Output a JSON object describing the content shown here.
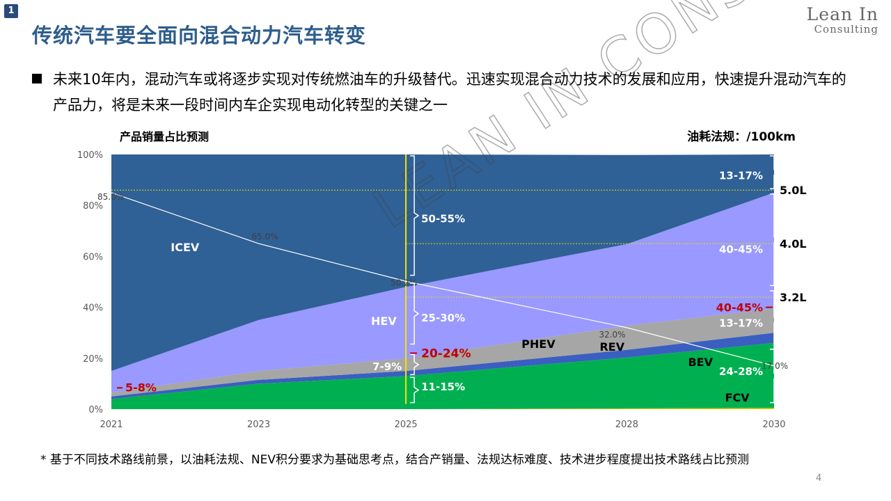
{
  "slide": {
    "badge": "1",
    "title": "传统汽车要全面向混合动力汽车转变",
    "logo_line1": "Lean In",
    "logo_line2": "Consulting",
    "bullet": "未来10年内，混动汽车或将逐步实现对传统燃油车的升级替代。迅速实现混合动力技术的发展和应用，快速提升混动汽车的产品力，将是未来一段时间内车企实现电动化转型的关键之一",
    "footnote": "* 基于不同技术路线前景，以油耗法规、NEV积分要求为基础思考点，结合产销量、法规达标难度、技术进步程度提出技术路线占比预测",
    "page_number": "4",
    "watermark": "LEAN IN CONSULTING"
  },
  "chart_data": {
    "type": "area",
    "title": "产品销量占比预测",
    "right_title": "油耗法规：/100km",
    "x": [
      2021,
      2023,
      2025,
      2028,
      2030
    ],
    "x_tick_labels": [
      "2021",
      "2023",
      "2025",
      "2028",
      "2030"
    ],
    "y_tick_labels": [
      "0%",
      "20%",
      "40%",
      "60%",
      "80%",
      "100%"
    ],
    "ylim": [
      0,
      100
    ],
    "series": [
      {
        "name": "FCV",
        "values": [
          0,
          0,
          0,
          0.3,
          0.5
        ],
        "color": "#c8c800"
      },
      {
        "name": "BEV",
        "values": [
          4,
          10,
          13,
          20,
          25.5
        ],
        "color": "#00b050"
      },
      {
        "name": "REV",
        "values": [
          1,
          1.5,
          2,
          3,
          4
        ],
        "color": "#3a5fc0"
      },
      {
        "name": "PHEV",
        "values": [
          1.5,
          3.5,
          5,
          9.5,
          9.5
        ],
        "color": "#a6a6a6"
      },
      {
        "name": "HEV",
        "values": [
          8.5,
          20,
          28,
          32,
          45.5
        ],
        "color": "#9999ff"
      },
      {
        "name": "ICEV",
        "values": [
          85,
          65,
          52,
          35,
          15
        ],
        "color": "#2f6096"
      }
    ],
    "series_labels": [
      {
        "text": "ICEV",
        "x": 2022.0,
        "y": 62,
        "color": "#ffffff"
      },
      {
        "text": "HEV",
        "x": 2024.7,
        "y": 33,
        "color": "#ffffff"
      },
      {
        "text": "PHEV",
        "x": 2026.8,
        "y": 24,
        "color": "#000000"
      },
      {
        "text": "REV",
        "x": 2027.8,
        "y": 23,
        "color": "#000000"
      },
      {
        "text": "BEV",
        "x": 2029.0,
        "y": 17,
        "color": "#000000"
      },
      {
        "text": "FCV",
        "x": 2029.5,
        "y": 3,
        "color": "#000000"
      }
    ],
    "line_series": {
      "values": [
        85.0,
        65.0,
        50.2,
        32.0,
        17.0
      ],
      "labels": [
        "85.0%",
        "65.0%",
        "50.2%",
        "32.0%",
        "17.0%"
      ],
      "color": "#ffffff"
    },
    "bracket_labels_2025": [
      {
        "text": "50-55%",
        "y": 75,
        "color": "#ffffff",
        "red": false
      },
      {
        "text": "25-30%",
        "y": 36,
        "color": "#ffffff",
        "red": false
      },
      {
        "text": "20-24%",
        "y": 22,
        "color": "#c00000",
        "red": true
      },
      {
        "text": "7-9%",
        "y": 17,
        "color": "#ffffff",
        "red": false
      },
      {
        "text": "11-15%",
        "y": 9,
        "color": "#ffffff",
        "red": false
      }
    ],
    "bracket_labels_2030": [
      {
        "text": "13-17%",
        "y": 92,
        "color": "#ffffff",
        "red": false
      },
      {
        "text": "40-45%",
        "y": 63,
        "color": "#ffffff",
        "red": false
      },
      {
        "text": "40-45%",
        "y": 40,
        "color": "#c00000",
        "red": true
      },
      {
        "text": "13-17%",
        "y": 34,
        "color": "#ffffff",
        "red": false
      },
      {
        "text": "24-28%",
        "y": 15,
        "color": "#ffffff",
        "red": false
      }
    ],
    "label_2021": {
      "text": "5-8%",
      "y": 7,
      "color": "#c00000"
    },
    "fuel_targets": [
      {
        "label": "5.0L",
        "y": 86
      },
      {
        "label": "4.0L",
        "y": 65
      },
      {
        "label": "3.2L",
        "y": 44
      }
    ],
    "grid": false,
    "legend": "none"
  }
}
